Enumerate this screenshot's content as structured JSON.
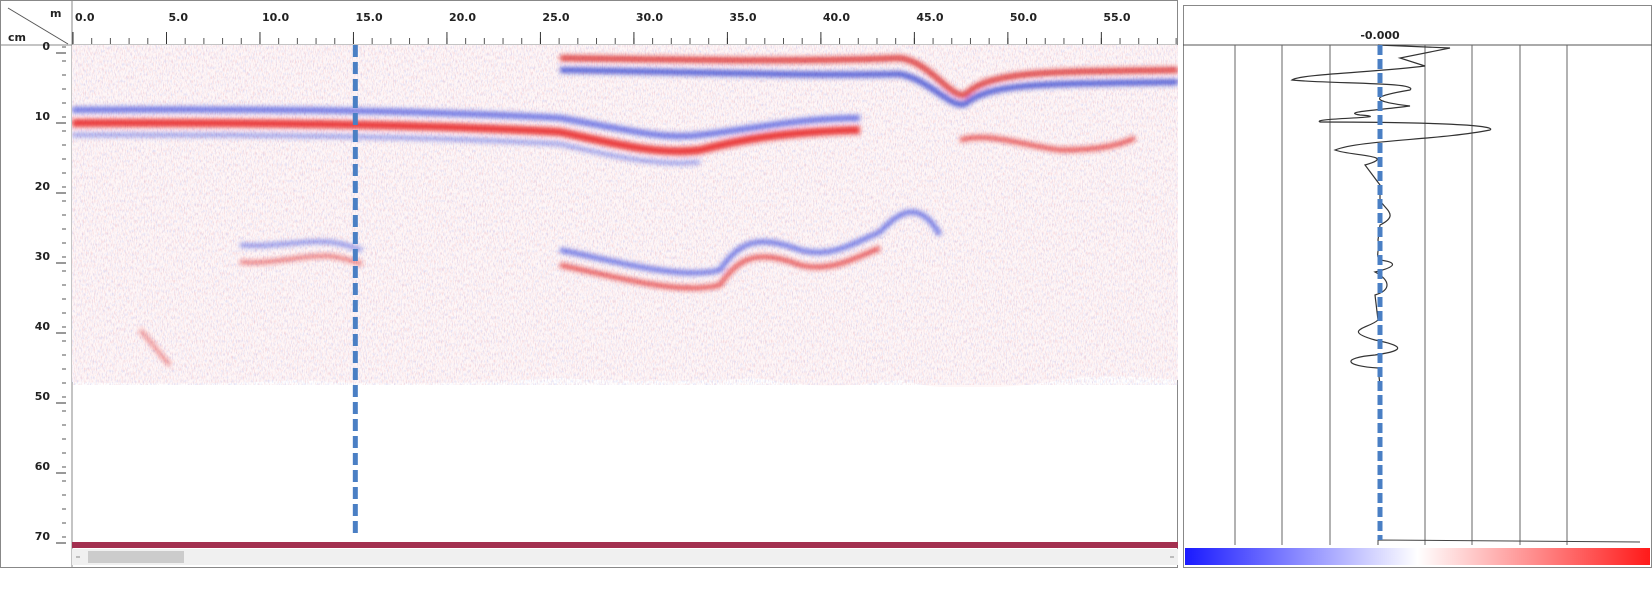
{
  "radargram": {
    "x_unit": "m",
    "y_unit": "cm",
    "xlim": [
      0,
      59.1
    ],
    "ylim": [
      0,
      70
    ],
    "xticks": [
      {
        "value": 0,
        "label": "0.0"
      },
      {
        "value": 5,
        "label": "5.0"
      },
      {
        "value": 10,
        "label": "10.0"
      },
      {
        "value": 15,
        "label": "15.0"
      },
      {
        "value": 20,
        "label": "20.0"
      },
      {
        "value": 25,
        "label": "25.0"
      },
      {
        "value": 30,
        "label": "30.0"
      },
      {
        "value": 35,
        "label": "35.0"
      },
      {
        "value": 40,
        "label": "40.0"
      },
      {
        "value": 45,
        "label": "45.0"
      },
      {
        "value": 50,
        "label": "50.0"
      },
      {
        "value": 55,
        "label": "55.0"
      }
    ],
    "yticks": [
      0,
      10,
      20,
      30,
      40,
      50,
      60,
      70
    ],
    "cursor_x": 15.1
  },
  "trace": {
    "label": "-0.000"
  }
}
